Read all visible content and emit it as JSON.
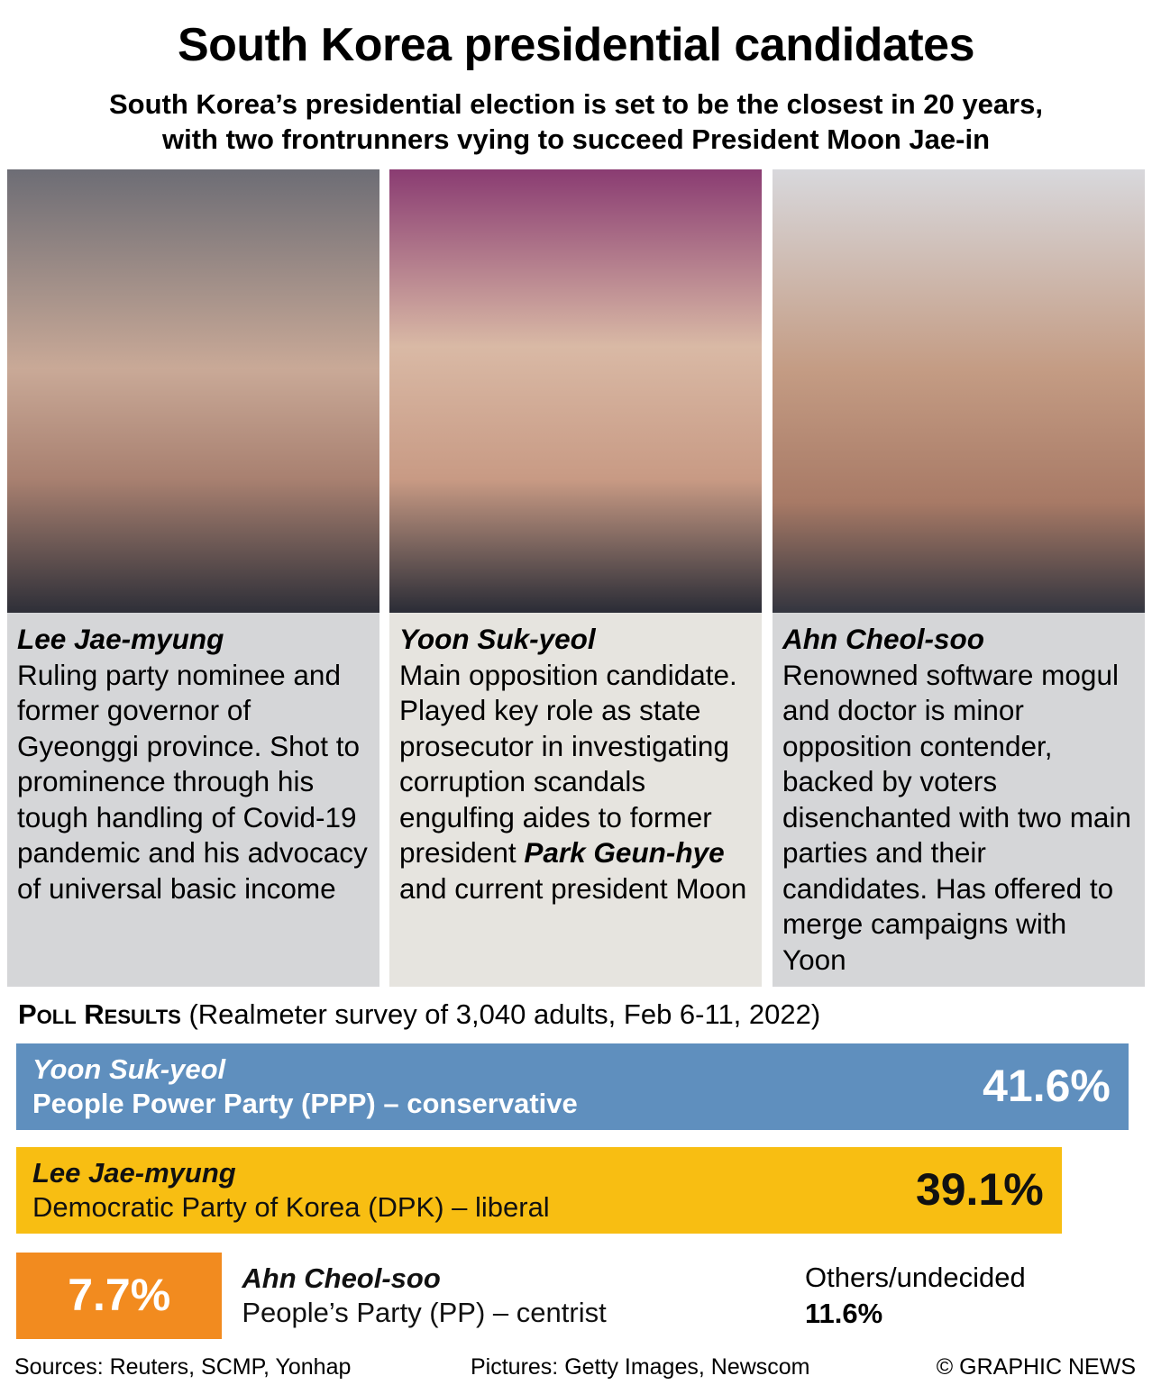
{
  "header": {
    "title": "South Korea presidential candidates",
    "subtitle": [
      "South Korea’s presidential election is set to be the closest in 20 years,",
      "with two frontrunners vying to succeed President Moon Jae-in"
    ]
  },
  "candidates": [
    {
      "name": "Lee Jae-myung",
      "bio": [
        "Ruling party nominee and former governor of Gyeonggi province. Shot to prominence through his tough handling of Covid-19 pandemic and his advocacy of universal basic income"
      ]
    },
    {
      "name": "Yoon Suk-yeol",
      "bio": [
        "Main opposition candidate. Played key role as state prosecutor in investigating corruption scandals engulfing aides to former president ",
        "Park Geun-hye",
        " and current president Moon"
      ]
    },
    {
      "name": "Ahn Cheol-soo",
      "bio": [
        "Renowned software mogul and doctor is minor opposition contender, backed by voters disenchanted with two main parties and their candidates. Has offered to merge campaigns with Yoon"
      ]
    }
  ],
  "chart_data": {
    "type": "bar",
    "title": "Poll Results",
    "subtitle": "(Realmeter survey of 3,040 adults, Feb 6-11, 2022)",
    "categories": [
      "Yoon Suk-yeol",
      "Lee Jae-myung",
      "Ahn Cheol-soo"
    ],
    "parties": [
      "People Power Party (PPP) – conservative",
      "Democratic Party of Korea (DPK) – liberal",
      "People’s Party (PP) – centrist"
    ],
    "values": [
      41.6,
      39.1,
      7.7
    ],
    "value_labels": [
      "41.6%",
      "39.1%",
      "7.7%"
    ],
    "colors": [
      "#5f8fbe",
      "#f8be12",
      "#f28b1f"
    ],
    "others": {
      "name": "Others/undecided",
      "value_label": "11.6%"
    }
  },
  "footer": {
    "sources": "Sources: Reuters, SCMP, Yonhap",
    "pictures": "Pictures: Getty Images, Newscom",
    "credit": "© GRAPHIC NEWS"
  }
}
